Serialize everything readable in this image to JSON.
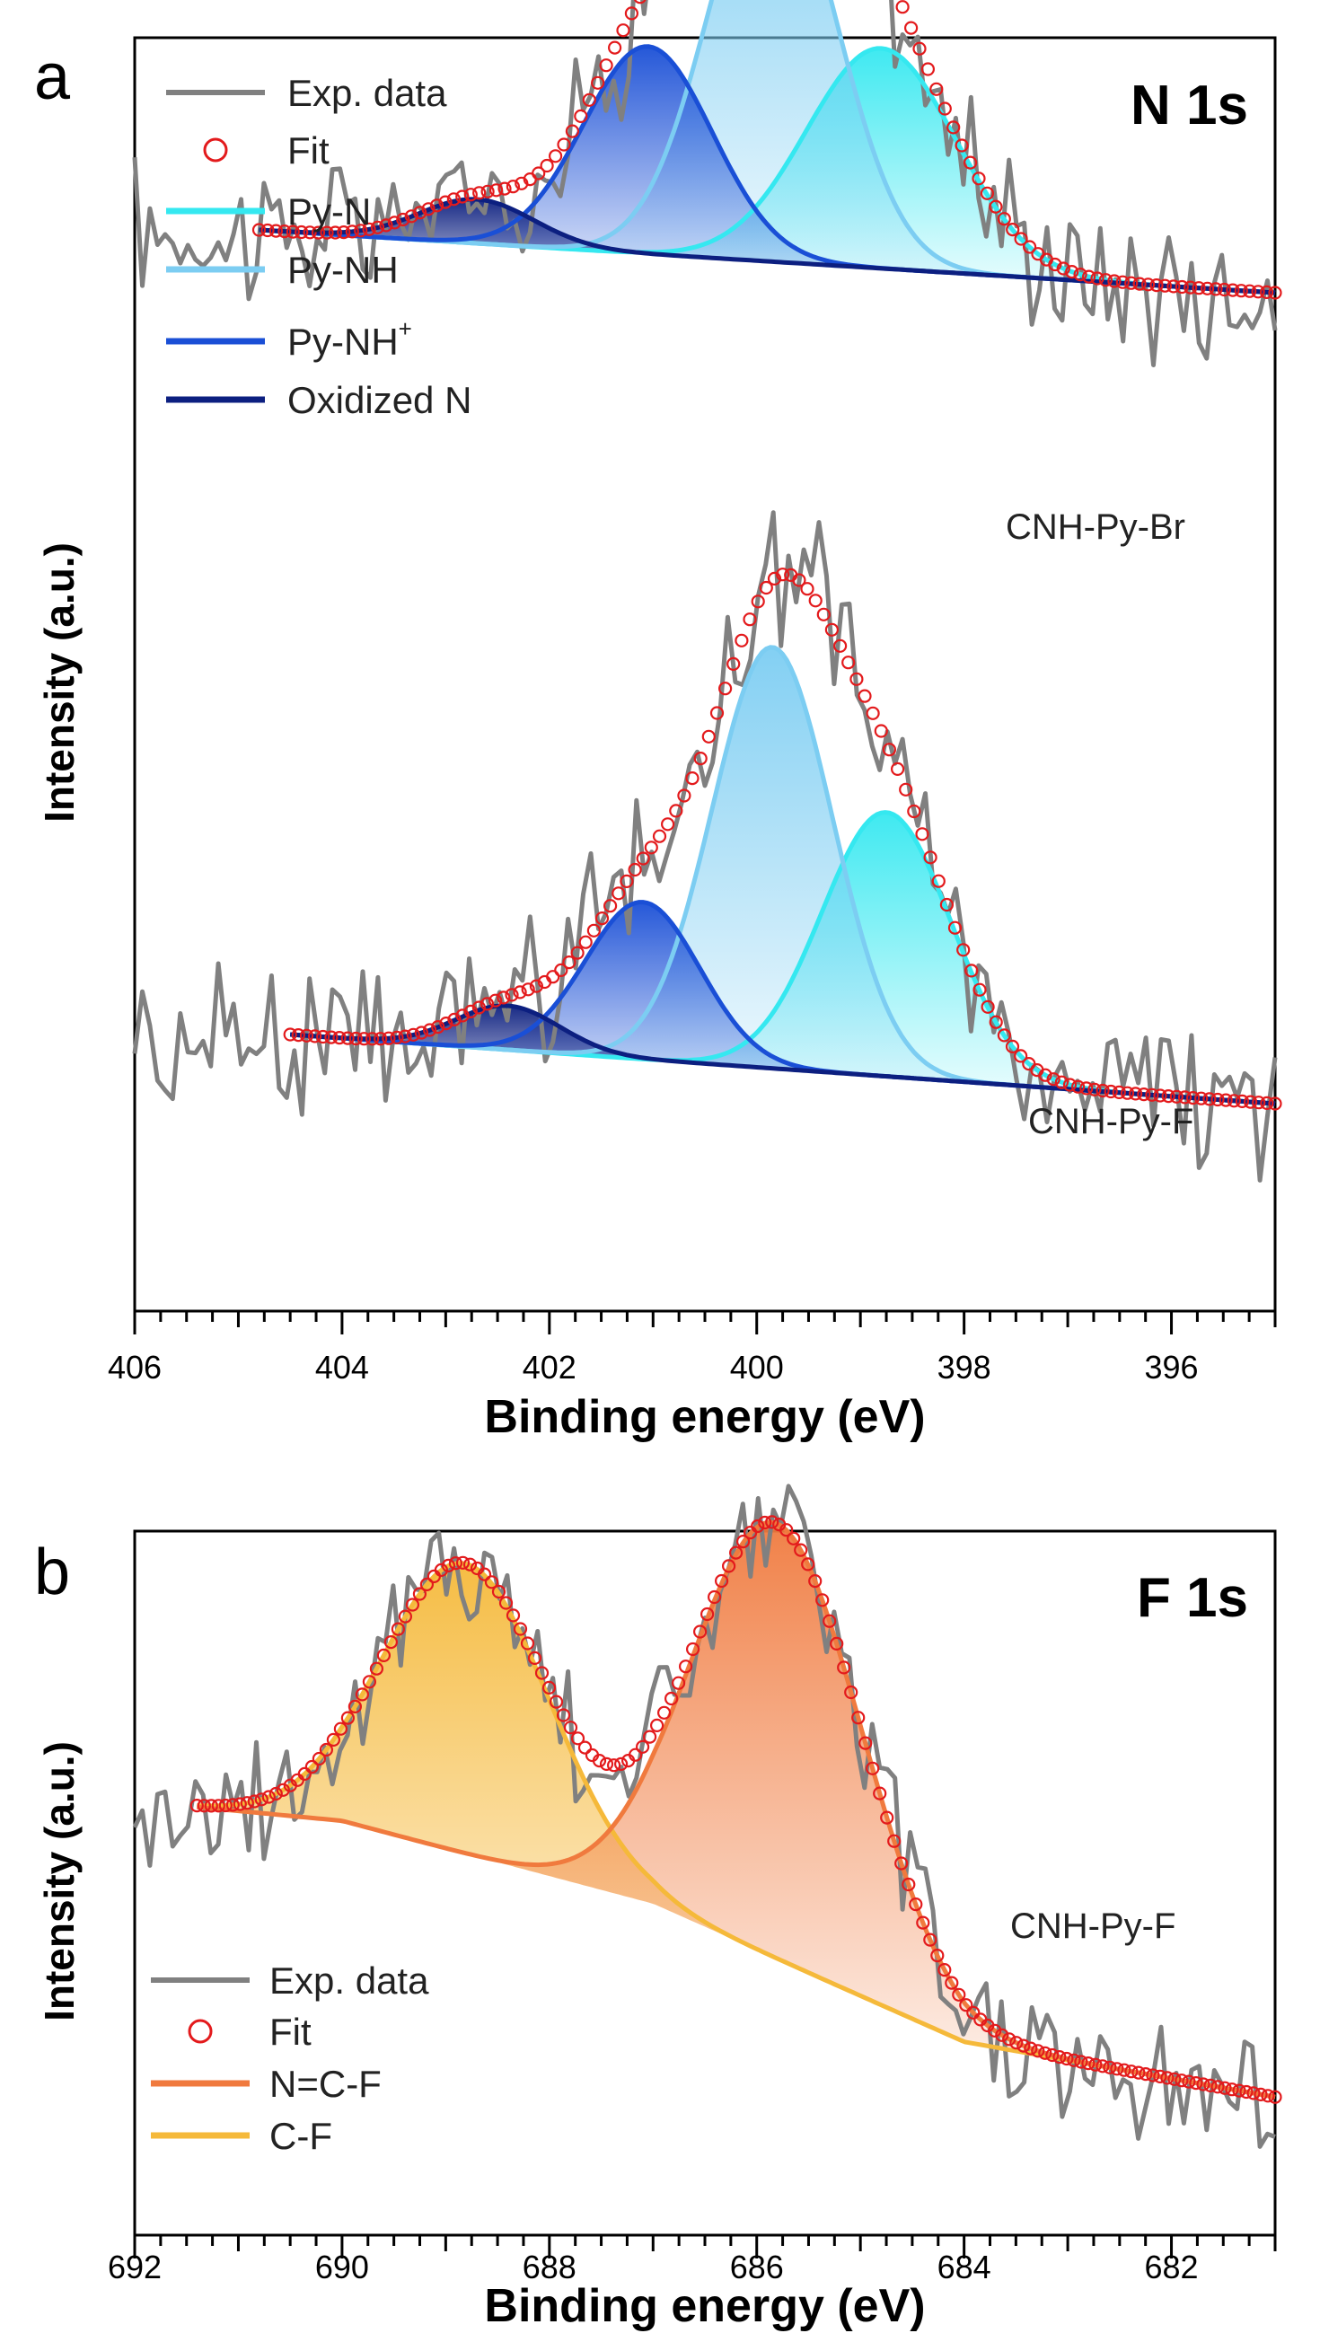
{
  "chart_data": [
    {
      "type": "line",
      "panel": "a",
      "title": "N 1s",
      "xlabel": "Binding energy (eV)",
      "ylabel": "Intensity (a.u.)",
      "xlim": [
        406,
        395
      ],
      "xticks": [
        406,
        404,
        402,
        400,
        398,
        396
      ],
      "legend_position": "top-left",
      "legend": [
        "Exp. data",
        "Fit",
        "Py-N",
        "Py-NH",
        "Py-NH",
        "Oxidized N"
      ],
      "legend_superscript": "+",
      "colors": {
        "exp": "#808080",
        "fit": "#e31a1c",
        "py_n": "#35e8f0",
        "py_nh": "#7ccdf2",
        "py_nh_plus": "#1a4fd6",
        "oxidized_n": "#0c1f80"
      },
      "stacks": [
        {
          "sample": "CNH-Py-Br",
          "offset": 0.86,
          "baseline": [
            [
              404.8,
              0.0
            ],
            [
              395,
              -0.05
            ]
          ],
          "components": [
            {
              "name": "Py-N",
              "center": 398.8,
              "height": 0.175,
              "width": 0.72
            },
            {
              "name": "Py-NH",
              "center": 399.85,
              "height": 0.32,
              "width": 0.62
            },
            {
              "name": "Py-NH+",
              "center": 401.05,
              "height": 0.165,
              "width": 0.62
            },
            {
              "name": "Oxidized N",
              "center": 402.7,
              "height": 0.035,
              "width": 0.55
            }
          ]
        },
        {
          "sample": "CNH-Py-F",
          "offset": 0.22,
          "baseline": [
            [
              404.5,
              0.0
            ],
            [
              395,
              -0.055
            ]
          ],
          "components": [
            {
              "name": "Py-N",
              "center": 398.75,
              "height": 0.21,
              "width": 0.62
            },
            {
              "name": "Py-NH",
              "center": 399.85,
              "height": 0.335,
              "width": 0.58
            },
            {
              "name": "Py-NH+",
              "center": 401.1,
              "height": 0.125,
              "width": 0.55
            },
            {
              "name": "Oxidized N",
              "center": 402.4,
              "height": 0.035,
              "width": 0.5
            }
          ]
        }
      ]
    },
    {
      "type": "line",
      "panel": "b",
      "title": "F 1s",
      "xlabel": "Binding energy (eV)",
      "ylabel": "Intensity (a.u.)",
      "xlim": [
        692,
        681
      ],
      "xticks": [
        692,
        690,
        688,
        686,
        684,
        682
      ],
      "legend_position": "bottom-left",
      "legend": [
        "Exp. data",
        "Fit",
        "N=C-F",
        "C-F"
      ],
      "colors": {
        "exp": "#808080",
        "fit": "#e31a1c",
        "ncf": "#f07a3e",
        "cf": "#f5b93a"
      },
      "stacks": [
        {
          "sample": "CNH-Py-F",
          "offset": 0.0,
          "baseline": [
            [
              691.4,
              0.62
            ],
            [
              690,
              0.6
            ],
            [
              687,
              0.48
            ],
            [
              684,
              0.28
            ],
            [
              681,
              0.2
            ]
          ],
          "components": [
            {
              "name": "C-F",
              "center": 688.8,
              "height": 0.42,
              "width": 0.8
            },
            {
              "name": "N=C-F",
              "center": 685.8,
              "height": 0.63,
              "width": 0.82
            }
          ]
        }
      ]
    }
  ]
}
